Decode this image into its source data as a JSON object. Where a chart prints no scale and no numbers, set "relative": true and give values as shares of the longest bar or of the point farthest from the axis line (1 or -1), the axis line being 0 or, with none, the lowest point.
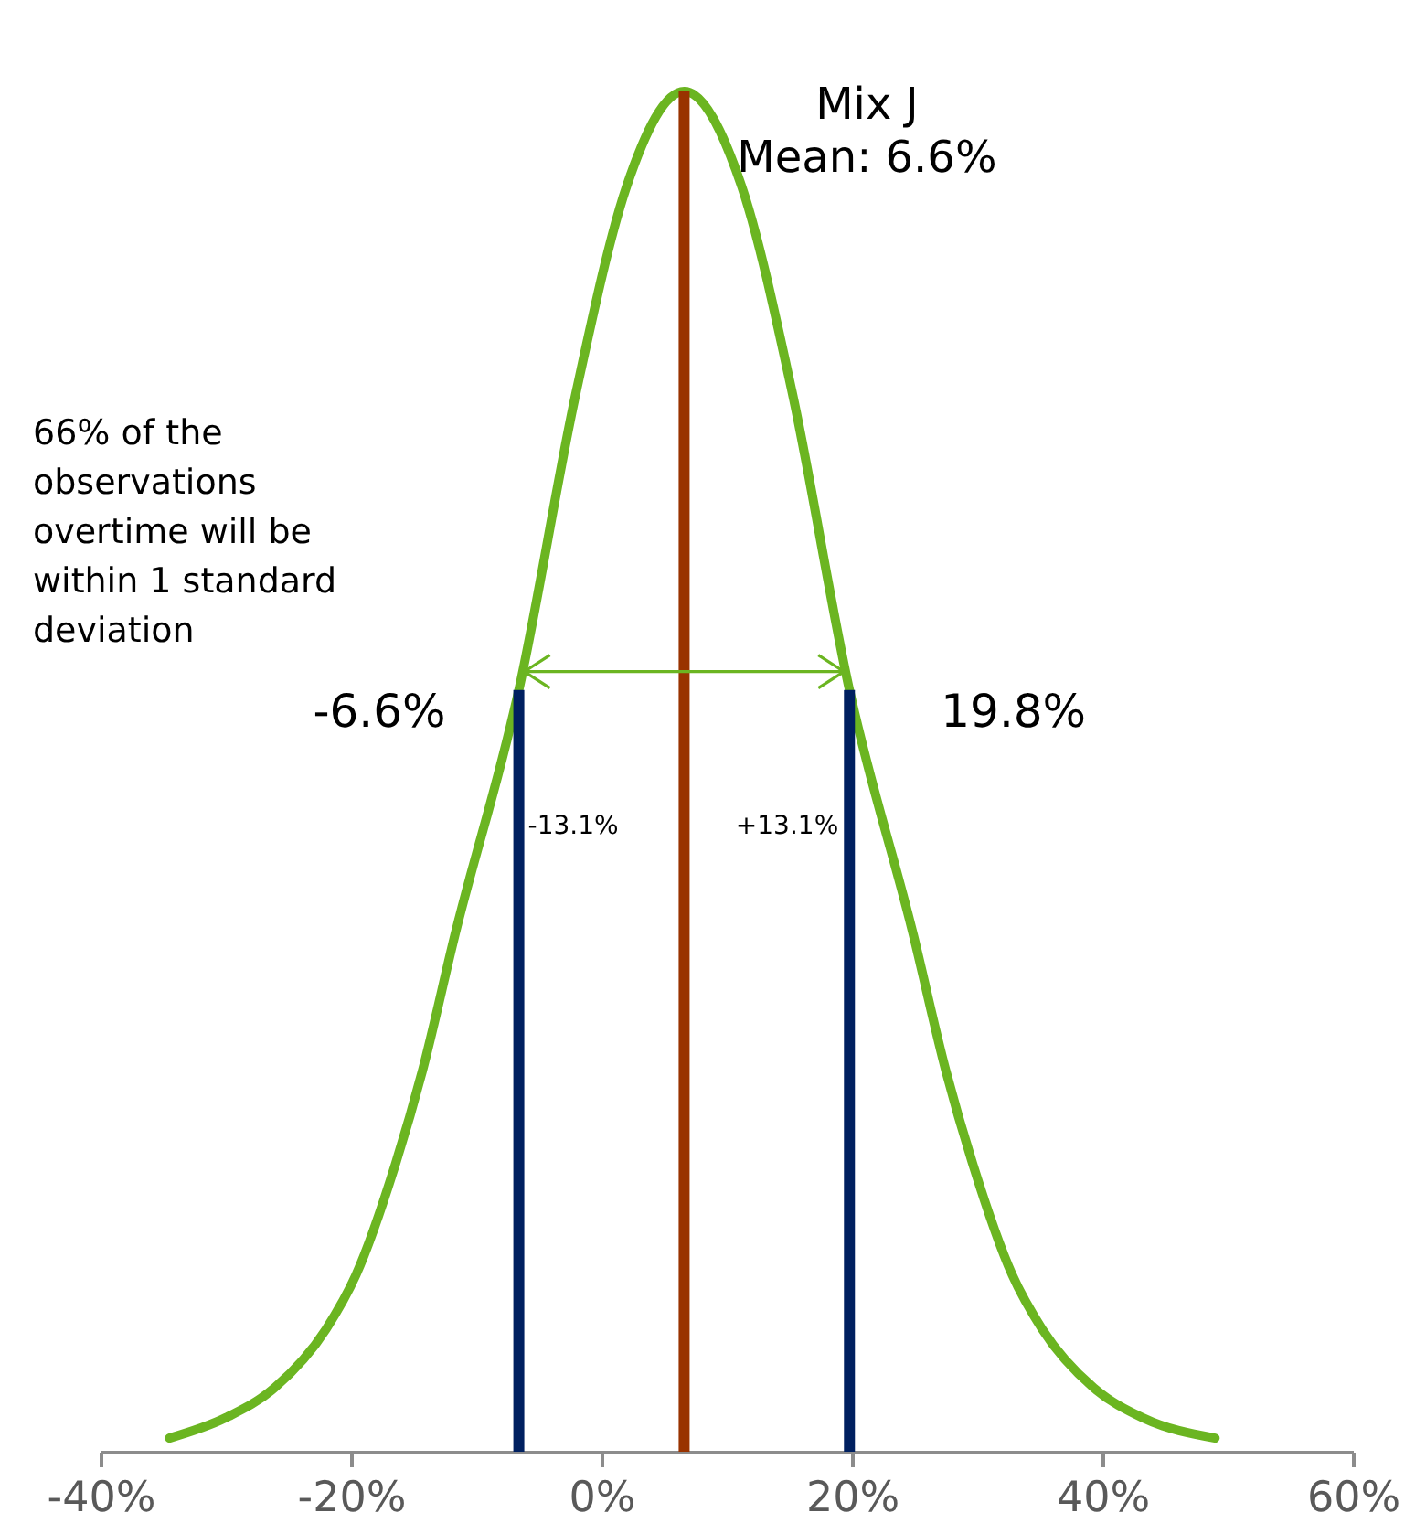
{
  "chart_data": {
    "type": "line",
    "relative": true,
    "x": [
      -34.5,
      -30,
      -26.1,
      -22,
      -19.6,
      -16.5,
      -14.3,
      -11.7,
      -6.6,
      -2,
      2,
      6.6,
      11.2,
      15.2,
      19.8,
      24.9,
      27.5,
      29.7,
      32.8,
      35.2,
      39.3,
      43.2,
      49.0
    ],
    "series": [
      {
        "color": "#6bb521",
        "values": [
          0.01,
          0.025,
          0.047,
          0.09,
          0.13,
          0.21,
          0.28,
          0.38,
          0.56,
          0.78,
          0.93,
          1,
          0.93,
          0.78,
          0.56,
          0.38,
          0.28,
          0.21,
          0.13,
          0.09,
          0.047,
          0.025,
          0.01
        ]
      }
    ],
    "xlim": [
      -40,
      60
    ],
    "xticks": [
      {
        "value": -40,
        "label": "-40%"
      },
      {
        "value": -20,
        "label": "-20%"
      },
      {
        "value": 0,
        "label": "0%"
      },
      {
        "value": 20,
        "label": "20%"
      },
      {
        "value": 40,
        "label": "40%"
      },
      {
        "value": 60,
        "label": "60%"
      }
    ],
    "ref_lines": [
      {
        "axis": "x",
        "value": -6.6,
        "label": "-6.6%",
        "color": "#002060"
      },
      {
        "axis": "x",
        "value": 6.6,
        "label": "Mix J\nMean: 6.6%",
        "color": "#993300"
      },
      {
        "axis": "x",
        "value": 19.8,
        "label": "19.8%",
        "color": "#002060"
      }
    ],
    "annotations": [
      "66% of the observations overtime will be within 1 standard deviation",
      {
        "text": "-13.1%",
        "x": -6.6,
        "y": 0.46
      },
      {
        "text": "+13.1%",
        "x": 19.8,
        "y": 0.46
      }
    ]
  }
}
